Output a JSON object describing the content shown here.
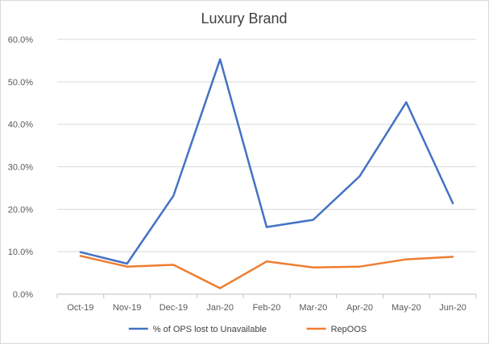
{
  "chart_data": {
    "type": "line",
    "title": "Luxury Brand",
    "xlabel": "",
    "ylabel": "",
    "categories": [
      "Oct-19",
      "Nov-19",
      "Dec-19",
      "Jan-20",
      "Feb-20",
      "Mar-20",
      "Apr-20",
      "May-20",
      "Jun-20"
    ],
    "ylim": [
      0,
      0.6
    ],
    "yticks": [
      "0.0%",
      "10.0%",
      "20.0%",
      "30.0%",
      "40.0%",
      "50.0%",
      "60.0%"
    ],
    "grid": true,
    "legend_position": "bottom",
    "series": [
      {
        "name": "% of OPS lost to Unavailable",
        "color": "#4472C4",
        "values": [
          0.099,
          0.072,
          0.232,
          0.553,
          0.158,
          0.175,
          0.278,
          0.452,
          0.214
        ]
      },
      {
        "name": "RepOOS",
        "color": "#ED7D31",
        "values": [
          0.09,
          0.065,
          0.069,
          0.014,
          0.077,
          0.063,
          0.065,
          0.082,
          0.088
        ]
      }
    ]
  }
}
